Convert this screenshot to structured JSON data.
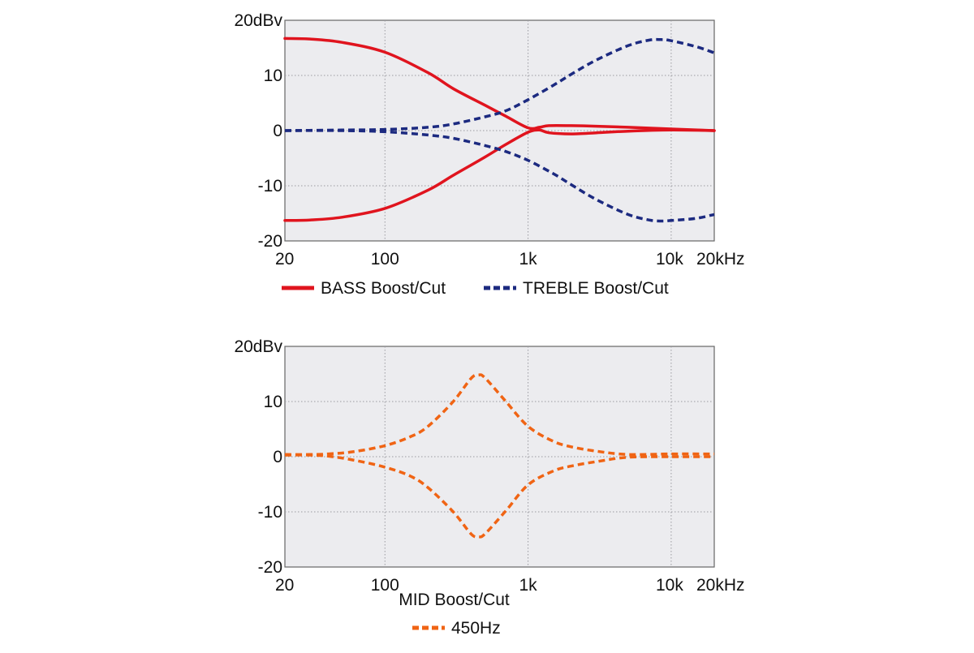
{
  "chart_data": [
    {
      "type": "line",
      "title": "",
      "xlabel": "",
      "ylabel": "",
      "x_scale": "log",
      "xlim": [
        20,
        20000
      ],
      "ylim": [
        -20,
        20
      ],
      "x_ticks": [
        20,
        100,
        1000,
        10000,
        20000
      ],
      "x_tick_labels": [
        "20",
        "100",
        "1k",
        "10k",
        "20kHz"
      ],
      "y_ticks": [
        20,
        10,
        0,
        -10,
        -20
      ],
      "y_tick_labels": [
        "20dBv",
        "10",
        "0",
        "-10",
        "-20"
      ],
      "grid": true,
      "legend": [
        {
          "label": "BASS Boost/Cut",
          "color": "#e0141e",
          "dash": "solid"
        },
        {
          "label": "TREBLE Boost/Cut",
          "color": "#1c2a80",
          "dash": "dashed"
        }
      ],
      "series": [
        {
          "name": "BASS Boost",
          "color": "#e0141e",
          "dash": "solid",
          "x": [
            20,
            30,
            50,
            100,
            200,
            300,
            500,
            700,
            1000,
            1200,
            1400,
            2000,
            3000,
            5000,
            10000,
            20000
          ],
          "y": [
            16.7,
            16.6,
            16.0,
            14.2,
            10.5,
            7.6,
            4.6,
            2.6,
            0.5,
            0.6,
            0.9,
            0.9,
            0.8,
            0.6,
            0.3,
            0.0
          ]
        },
        {
          "name": "BASS Cut",
          "color": "#e0141e",
          "dash": "solid",
          "x": [
            20,
            30,
            50,
            100,
            200,
            300,
            500,
            700,
            1000,
            1200,
            1400,
            2000,
            3000,
            5000,
            10000,
            20000
          ],
          "y": [
            -16.3,
            -16.2,
            -15.7,
            -14.1,
            -10.8,
            -8.1,
            -4.8,
            -2.5,
            -0.3,
            0.1,
            -0.4,
            -0.6,
            -0.4,
            -0.1,
            0.1,
            0.0
          ]
        },
        {
          "name": "TREBLE Boost",
          "color": "#1c2a80",
          "dash": "dashed",
          "x": [
            20,
            50,
            100,
            200,
            300,
            500,
            700,
            1000,
            1500,
            2000,
            3000,
            5000,
            7000,
            8500,
            10000,
            15000,
            20000
          ],
          "y": [
            0.0,
            0.1,
            0.2,
            0.6,
            1.2,
            2.5,
            3.6,
            5.6,
            8.2,
            10.2,
            12.8,
            15.4,
            16.4,
            16.5,
            16.3,
            15.2,
            14.1
          ]
        },
        {
          "name": "TREBLE Cut",
          "color": "#1c2a80",
          "dash": "dashed",
          "x": [
            20,
            50,
            100,
            200,
            300,
            500,
            700,
            1000,
            1500,
            2000,
            3000,
            5000,
            7000,
            8500,
            10000,
            15000,
            20000
          ],
          "y": [
            0.0,
            0.0,
            -0.2,
            -0.8,
            -1.4,
            -2.7,
            -3.8,
            -5.4,
            -7.8,
            -9.8,
            -12.5,
            -15.2,
            -16.2,
            -16.4,
            -16.3,
            -15.9,
            -15.2
          ]
        }
      ]
    },
    {
      "type": "line",
      "title": "MID Boost/Cut",
      "xlabel": "",
      "ylabel": "",
      "x_scale": "log",
      "xlim": [
        20,
        20000
      ],
      "ylim": [
        -20,
        20
      ],
      "x_ticks": [
        20,
        100,
        1000,
        10000,
        20000
      ],
      "x_tick_labels": [
        "20",
        "100",
        "1k",
        "10k",
        "20kHz"
      ],
      "y_ticks": [
        20,
        10,
        0,
        -10,
        -20
      ],
      "y_tick_labels": [
        "20dBv",
        "10",
        "0",
        "-10",
        "-20"
      ],
      "grid": true,
      "legend": [
        {
          "label": "450Hz",
          "color": "#f06414",
          "dash": "dashed"
        }
      ],
      "series": [
        {
          "name": "MID Boost",
          "color": "#f06414",
          "dash": "dashed",
          "x": [
            20,
            30,
            40,
            60,
            100,
            150,
            200,
            300,
            400,
            450,
            500,
            700,
            1000,
            1500,
            2000,
            3000,
            5000,
            10000,
            20000
          ],
          "y": [
            0.4,
            0.4,
            0.5,
            0.9,
            2.0,
            3.6,
            5.5,
            10.0,
            14.2,
            14.8,
            14.3,
            10.0,
            5.5,
            2.8,
            1.8,
            1.0,
            0.4,
            0.5,
            0.5
          ]
        },
        {
          "name": "MID Cut",
          "color": "#f06414",
          "dash": "dashed",
          "x": [
            20,
            30,
            40,
            60,
            100,
            150,
            200,
            300,
            400,
            450,
            500,
            700,
            1000,
            1500,
            2000,
            3000,
            5000,
            10000,
            20000
          ],
          "y": [
            0.3,
            0.3,
            0.1,
            -0.6,
            -1.9,
            -3.5,
            -5.6,
            -10.0,
            -14.0,
            -14.5,
            -14.0,
            -9.8,
            -5.1,
            -2.6,
            -1.7,
            -0.9,
            -0.1,
            0.0,
            0.0
          ]
        }
      ]
    }
  ]
}
